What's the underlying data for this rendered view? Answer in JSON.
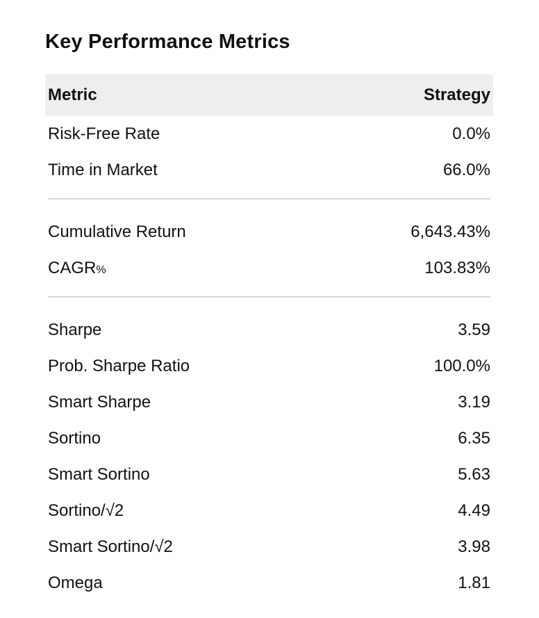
{
  "title": "Key Performance Metrics",
  "table": {
    "headers": {
      "metric": "Metric",
      "strategy": "Strategy"
    },
    "groups": [
      [
        {
          "metric": "Risk-Free Rate",
          "value": "0.0%"
        },
        {
          "metric": "Time in Market",
          "value": "66.0%"
        }
      ],
      [
        {
          "metric": "Cumulative Return",
          "value": "6,643.43%"
        },
        {
          "metric": "CAGR",
          "suffix": "%",
          "value": "103.83%"
        }
      ],
      [
        {
          "metric": "Sharpe",
          "value": "3.59"
        },
        {
          "metric": "Prob. Sharpe Ratio",
          "value": "100.0%"
        },
        {
          "metric": "Smart Sharpe",
          "value": "3.19"
        },
        {
          "metric": "Sortino",
          "value": "6.35"
        },
        {
          "metric": "Smart Sortino",
          "value": "5.63"
        },
        {
          "metric": "Sortino/√2",
          "value": "4.49"
        },
        {
          "metric": "Smart Sortino/√2",
          "value": "3.98"
        },
        {
          "metric": "Omega",
          "value": "1.81"
        }
      ]
    ]
  }
}
